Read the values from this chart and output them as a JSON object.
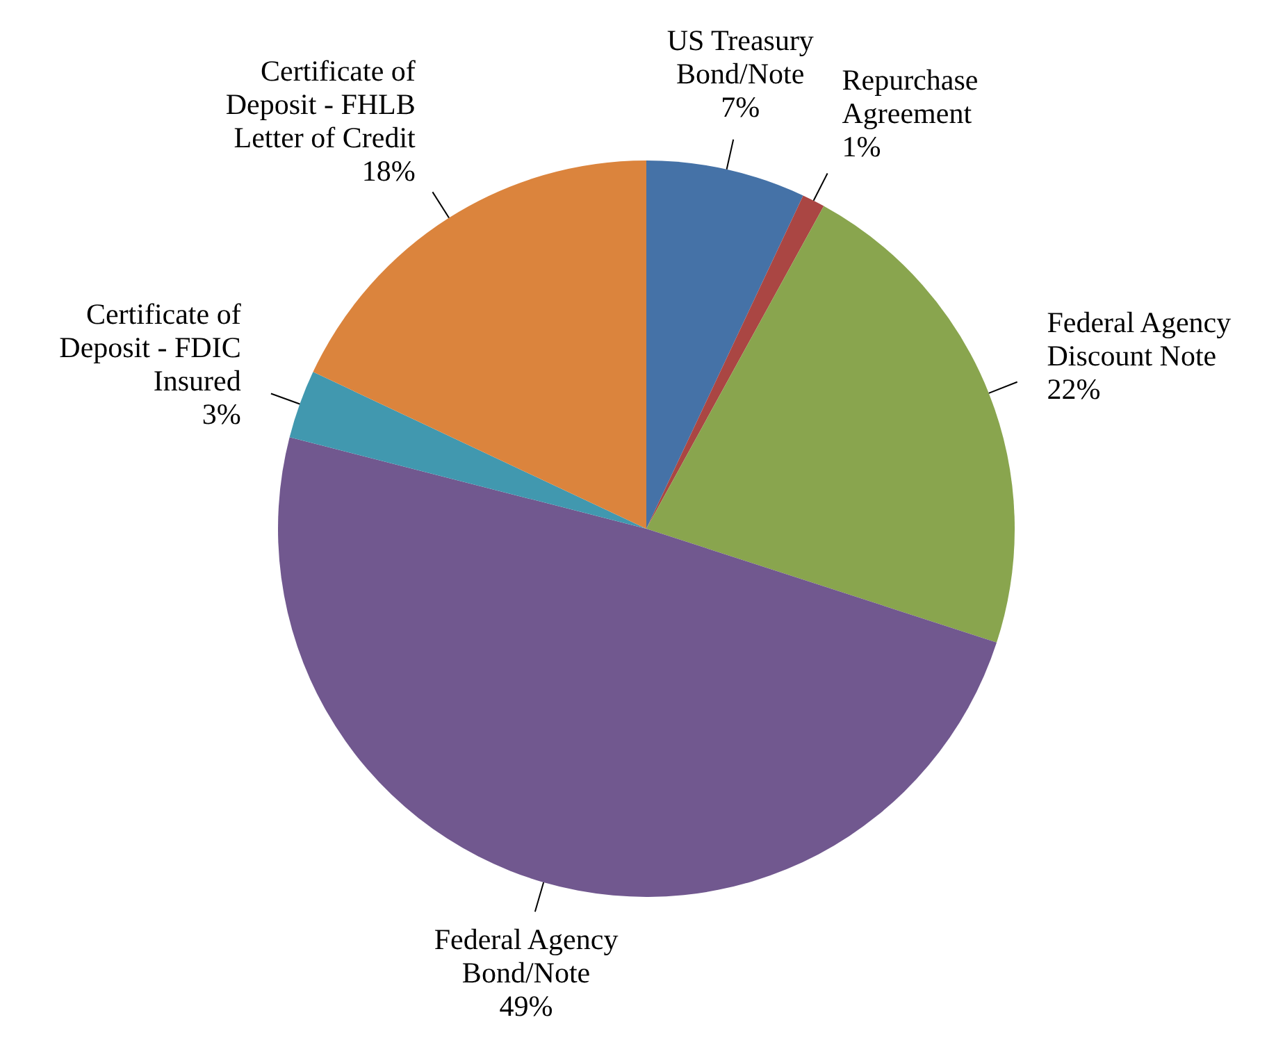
{
  "chart_data": {
    "type": "pie",
    "categories": [
      "US Treasury Bond/Note",
      "Repurchase Agreement",
      "Federal Agency Discount Note",
      "Federal Agency Bond/Note",
      "Certificate of Deposit - FDIC Insured",
      "Certificate of Deposit - FHLB Letter of Credit"
    ],
    "values": [
      7,
      1,
      22,
      49,
      3,
      18
    ],
    "colors": [
      "#4572a7",
      "#aa4643",
      "#89a54e",
      "#71588f",
      "#4198af",
      "#db843d"
    ],
    "value_labels": [
      "7%",
      "1%",
      "22%",
      "49%",
      "3%",
      "18%"
    ],
    "legend": false
  }
}
